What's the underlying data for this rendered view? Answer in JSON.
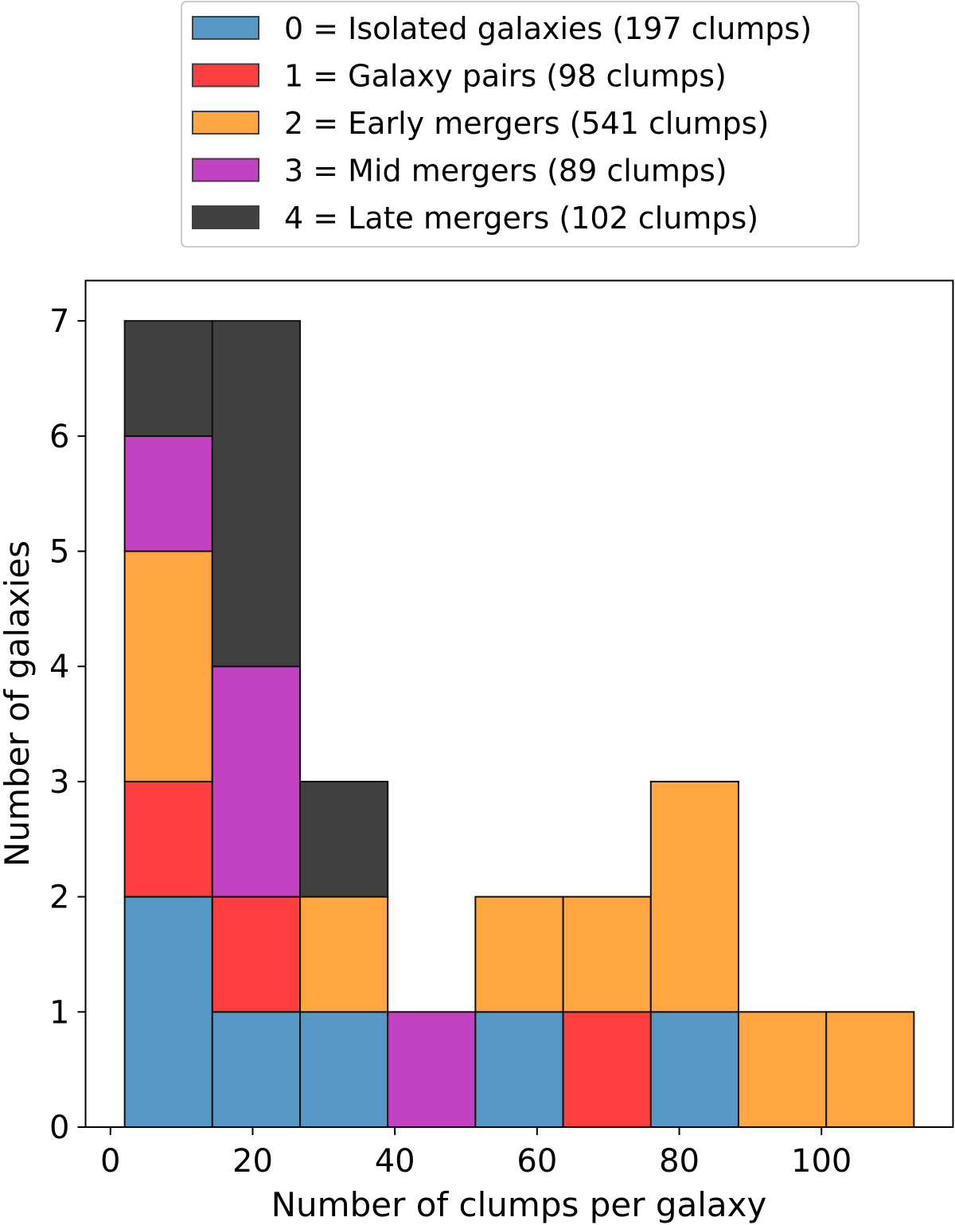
{
  "chart_data": {
    "type": "bar",
    "subtype": "stacked-histogram",
    "xlabel": "Number of clumps per galaxy",
    "ylabel": "Number of galaxies",
    "xlim": [
      -3.5,
      118.5
    ],
    "ylim": [
      0,
      7.35
    ],
    "xticks": [
      0,
      20,
      40,
      60,
      80,
      100
    ],
    "yticks": [
      0,
      1,
      2,
      3,
      4,
      5,
      6,
      7
    ],
    "bin_edges": [
      2,
      14.33,
      26.67,
      39,
      51.33,
      63.67,
      76,
      88.33,
      100.67,
      113
    ],
    "grid": false,
    "legend_position": "top (above plot)",
    "series": [
      {
        "name": "0 = Isolated galaxies (197 clumps)",
        "color": "#5698c6",
        "values": [
          2,
          1,
          1,
          0,
          1,
          0,
          1,
          0,
          0
        ]
      },
      {
        "name": "1 = Galaxy pairs (98 clumps)",
        "color": "#ff3f3f",
        "values": [
          1,
          1,
          0,
          0,
          0,
          1,
          0,
          0,
          0
        ]
      },
      {
        "name": "2 = Early mergers (541 clumps)",
        "color": "#ffa640",
        "values": [
          2,
          0,
          1,
          0,
          1,
          1,
          2,
          1,
          1
        ]
      },
      {
        "name": "3 = Mid mergers (89 clumps)",
        "color": "#c242c2",
        "values": [
          1,
          2,
          0,
          1,
          0,
          0,
          0,
          0,
          0
        ]
      },
      {
        "name": "4 = Late mergers (102 clumps)",
        "color": "#404040",
        "values": [
          1,
          3,
          1,
          0,
          0,
          0,
          0,
          0,
          0
        ]
      }
    ]
  }
}
